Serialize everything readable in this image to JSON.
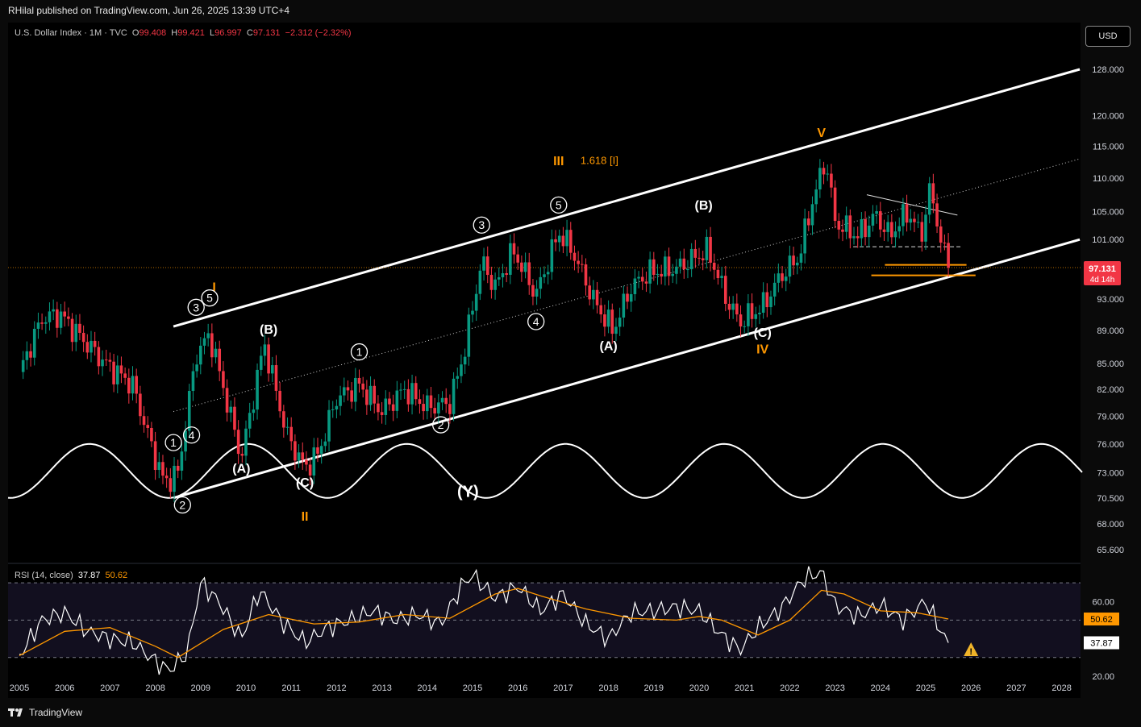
{
  "header": {
    "published": "RHilal published on TradingView.com, Jun 26, 2025 13:39 UTC+4"
  },
  "legend": {
    "symbol": "U.S. Dollar Index · 1M · TVC",
    "o_label": "O",
    "o": "99.408",
    "h_label": "H",
    "h": "99.421",
    "l_label": "L",
    "l": "96.997",
    "c_label": "C",
    "c": "97.131",
    "change": "−2.312 (−2.32%)"
  },
  "currency_button": "USD",
  "price_badge": {
    "price": "97.131",
    "countdown": "4d 14h"
  },
  "rsi": {
    "label": "RSI (14, close)",
    "value": "37.87",
    "ma": "50.62"
  },
  "footer": {
    "brand": "TradingView"
  },
  "colors": {
    "up": "#089981",
    "down": "#f23645",
    "orange": "#ff9800",
    "channel": "#ffffff"
  },
  "icons": {
    "warning": "warning-icon",
    "logo": "tradingview-logo-icon"
  },
  "chart_data": [
    {
      "type": "line",
      "title": "U.S. Dollar Index · 1M · TVC",
      "y_axis": {
        "scale": "log",
        "ticks": [
          65.6,
          68.0,
          70.5,
          73.0,
          76.0,
          79.0,
          82.0,
          85.0,
          89.0,
          93.0,
          97.131,
          101.0,
          105.0,
          110.0,
          115.0,
          120.0,
          128.0
        ],
        "tick_labels": [
          "65.600",
          "68.000",
          "70.500",
          "73.000",
          "76.000",
          "79.000",
          "82.000",
          "85.000",
          "89.000",
          "93.000",
          "97.131",
          "101.000",
          "105.000",
          "110.000",
          "115.000",
          "120.000",
          "128.000"
        ]
      },
      "x_axis": {
        "tick_labels": [
          "2005",
          "2006",
          "2007",
          "2008",
          "2009",
          "2010",
          "2011",
          "2012",
          "2013",
          "2014",
          "2015",
          "2016",
          "2017",
          "2018",
          "2019",
          "2020",
          "2021",
          "2022",
          "2023",
          "2024",
          "2025",
          "2026",
          "2027",
          "2028"
        ]
      },
      "series": [
        {
          "x": [
            2005.0,
            2005.5,
            2005.9,
            2006.3,
            2006.9,
            2007.5,
            2007.9,
            2008.2,
            2008.5,
            2008.9,
            2009.2,
            2009.9,
            2010.4,
            2010.9,
            2011.3,
            2011.6,
            2012.0,
            2012.5,
            2013.0,
            2013.5,
            2014.0,
            2014.5,
            2014.8,
            2015.2,
            2015.5,
            2015.9,
            2016.4,
            2016.9,
            2017.2,
            2017.7,
            2018.1,
            2018.5,
            2018.9,
            2019.5,
            2019.9,
            2020.2,
            2020.6,
            2020.9,
            2021.4,
            2021.8,
            2022.2,
            2022.5,
            2022.8,
            2023.0,
            2023.5,
            2023.9,
            2024.2,
            2024.6,
            2024.9,
            2025.1,
            2025.4,
            2025.5
          ],
          "y": [
            84.0,
            90.5,
            91.0,
            88.5,
            85.0,
            82.5,
            76.0,
            72.0,
            73.0,
            86.0,
            88.5,
            74.5,
            87.5,
            77.0,
            73.5,
            75.0,
            81.0,
            82.5,
            79.5,
            82.0,
            80.0,
            80.5,
            86.0,
            98.0,
            94.5,
            99.5,
            93.5,
            102.0,
            99.5,
            92.5,
            89.0,
            94.5,
            96.5,
            97.0,
            98.5,
            99.5,
            93.0,
            90.0,
            92.0,
            96.0,
            98.5,
            106.5,
            113.0,
            103.5,
            101.5,
            104.5,
            101.5,
            105.0,
            101.5,
            108.5,
            99.0,
            97.131
          ]
        }
      ],
      "channel": {
        "upper": [
          [
            2008.4,
            89.5
          ],
          [
            2028.4,
            128.0
          ]
        ],
        "lower": [
          [
            2008.4,
            70.5
          ],
          [
            2028.4,
            101.0
          ]
        ],
        "mid": [
          [
            2008.4,
            79.5
          ],
          [
            2028.4,
            113.0
          ]
        ]
      },
      "horizontal_levels": [
        97.5,
        96.1,
        100.0
      ],
      "cycle_wave": {
        "period_years": 3.5,
        "low": 70.5,
        "high": 76.0
      },
      "annotations": [
        {
          "text": "I",
          "x": 2009.3,
          "y": 94.0,
          "color": "orange"
        },
        {
          "text": "II",
          "x": 2011.3,
          "y": 68.3,
          "color": "orange"
        },
        {
          "text": "III",
          "x": 2016.9,
          "y": 112.0,
          "color": "orange"
        },
        {
          "text": "1.618 [I]",
          "x": 2017.8,
          "y": 112.2,
          "color": "orange"
        },
        {
          "text": "IV",
          "x": 2021.4,
          "y": 86.2,
          "color": "orange"
        },
        {
          "text": "V",
          "x": 2022.7,
          "y": 116.5,
          "color": "orange"
        },
        {
          "text": "(A)",
          "x": 2009.9,
          "y": 73.0,
          "color": "white"
        },
        {
          "text": "(B)",
          "x": 2010.5,
          "y": 88.6,
          "color": "white"
        },
        {
          "text": "(C)",
          "x": 2011.3,
          "y": 71.6,
          "color": "white"
        },
        {
          "text": "(Y)",
          "x": 2014.9,
          "y": 70.6,
          "color": "white"
        },
        {
          "text": "(A)",
          "x": 2018.0,
          "y": 86.6,
          "color": "white"
        },
        {
          "text": "(B)",
          "x": 2020.1,
          "y": 105.3,
          "color": "white"
        },
        {
          "text": "(C)",
          "x": 2021.4,
          "y": 88.2,
          "color": "white"
        },
        {
          "text": "1",
          "x": 2008.4,
          "y": 75.8,
          "circled": true
        },
        {
          "text": "2",
          "x": 2008.6,
          "y": 69.5,
          "circled": true
        },
        {
          "text": "3",
          "x": 2008.9,
          "y": 91.5,
          "circled": true
        },
        {
          "text": "4",
          "x": 2008.8,
          "y": 76.6,
          "circled": true
        },
        {
          "text": "5",
          "x": 2009.2,
          "y": 92.7,
          "circled": true
        },
        {
          "text": "1",
          "x": 2012.5,
          "y": 86.0,
          "circled": true
        },
        {
          "text": "2",
          "x": 2014.3,
          "y": 77.7,
          "circled": true
        },
        {
          "text": "3",
          "x": 2015.2,
          "y": 102.6,
          "circled": true
        },
        {
          "text": "4",
          "x": 2016.4,
          "y": 89.7,
          "circled": true
        },
        {
          "text": "5",
          "x": 2016.9,
          "y": 105.5,
          "circled": true
        }
      ]
    },
    {
      "type": "line",
      "title": "RSI (14, close)",
      "y_axis": {
        "ticks": [
          20,
          60
        ],
        "tick_labels": [
          "20.00",
          "60.00"
        ],
        "range": [
          10,
          80
        ],
        "bands": [
          30,
          70
        ],
        "midline": 50
      },
      "series": [
        {
          "name": "RSI",
          "x": [
            2005.0,
            2005.5,
            2006.0,
            2006.5,
            2007.0,
            2007.5,
            2008.0,
            2008.3,
            2008.7,
            2009.0,
            2009.4,
            2009.9,
            2010.3,
            2010.8,
            2011.3,
            2011.8,
            2012.3,
            2012.8,
            2013.3,
            2013.8,
            2014.3,
            2014.8,
            2015.0,
            2015.5,
            2016.0,
            2016.5,
            2017.0,
            2017.5,
            2018.0,
            2018.5,
            2019.0,
            2019.5,
            2020.0,
            2020.5,
            2020.9,
            2021.3,
            2021.8,
            2022.3,
            2022.7,
            2023.0,
            2023.5,
            2024.0,
            2024.5,
            2025.0,
            2025.3,
            2025.5
          ],
          "y": [
            31.0,
            50.0,
            54.0,
            44.0,
            40.0,
            38.0,
            28.0,
            23.0,
            32.0,
            70.0,
            60.0,
            40.0,
            66.0,
            49.0,
            38.0,
            46.0,
            50.0,
            55.0,
            50.0,
            53.0,
            48.0,
            70.0,
            74.0,
            62.0,
            68.0,
            55.0,
            64.0,
            48.0,
            40.0,
            54.0,
            55.0,
            57.0,
            55.0,
            42.0,
            34.0,
            46.0,
            56.0,
            72.0,
            76.0,
            58.0,
            52.0,
            58.0,
            50.0,
            60.0,
            46.0,
            37.87
          ]
        },
        {
          "name": "RSI-based MA",
          "x": [
            2005.0,
            2006.0,
            2007.0,
            2008.0,
            2008.5,
            2009.5,
            2010.5,
            2011.5,
            2012.5,
            2013.5,
            2014.5,
            2015.5,
            2016.0,
            2016.5,
            2017.5,
            2018.5,
            2019.5,
            2020.0,
            2020.5,
            2021.3,
            2022.0,
            2022.7,
            2023.2,
            2024.0,
            2024.8,
            2025.5
          ],
          "y": [
            31.0,
            44.0,
            46.0,
            36.0,
            30.0,
            45.0,
            53.0,
            48.0,
            49.0,
            53.0,
            51.0,
            64.0,
            67.0,
            63.0,
            56.0,
            51.0,
            50.0,
            52.0,
            50.0,
            42.0,
            50.0,
            66.0,
            64.0,
            55.0,
            54.0,
            50.62
          ]
        }
      ]
    }
  ]
}
